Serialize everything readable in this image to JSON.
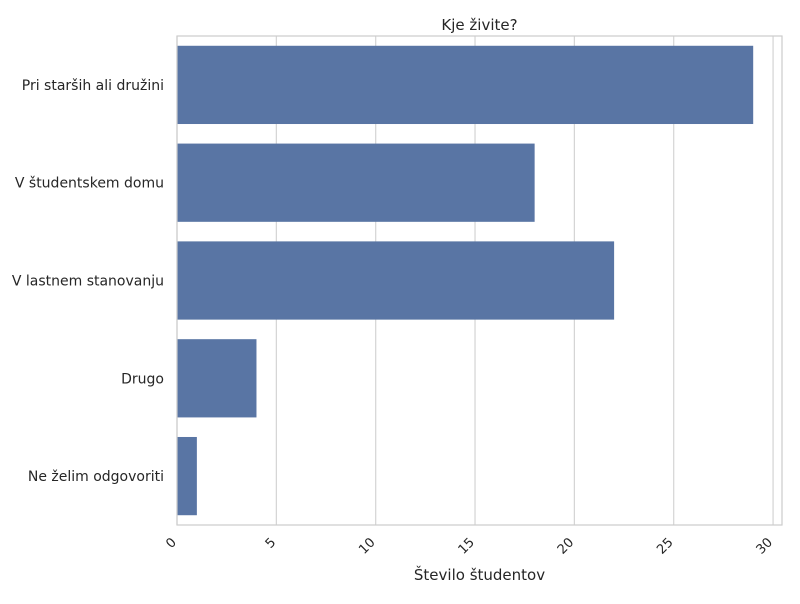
{
  "chart_data": {
    "type": "bar",
    "orientation": "horizontal",
    "title": "Kje živite?",
    "xlabel": "Število študentov",
    "ylabel": "",
    "categories": [
      "Pri starših ali družini",
      "V študentskem domu",
      "V lastnem stanovanju",
      "Drugo",
      "Ne želim odgovoriti"
    ],
    "values": [
      29,
      18,
      22,
      4,
      1
    ],
    "xlim": [
      0,
      30.45
    ],
    "xticks": [
      0,
      5,
      10,
      15,
      20,
      25,
      30
    ],
    "xtick_labels": [
      "0",
      "5",
      "10",
      "15",
      "20",
      "25",
      "30"
    ],
    "xtick_rotation": 45,
    "grid": "vertical",
    "legend": "none",
    "colors": {
      "bar": "#5975a4",
      "grid": "#d4d4d4",
      "axes_edge": "#cccccc",
      "text": "#262626"
    }
  }
}
